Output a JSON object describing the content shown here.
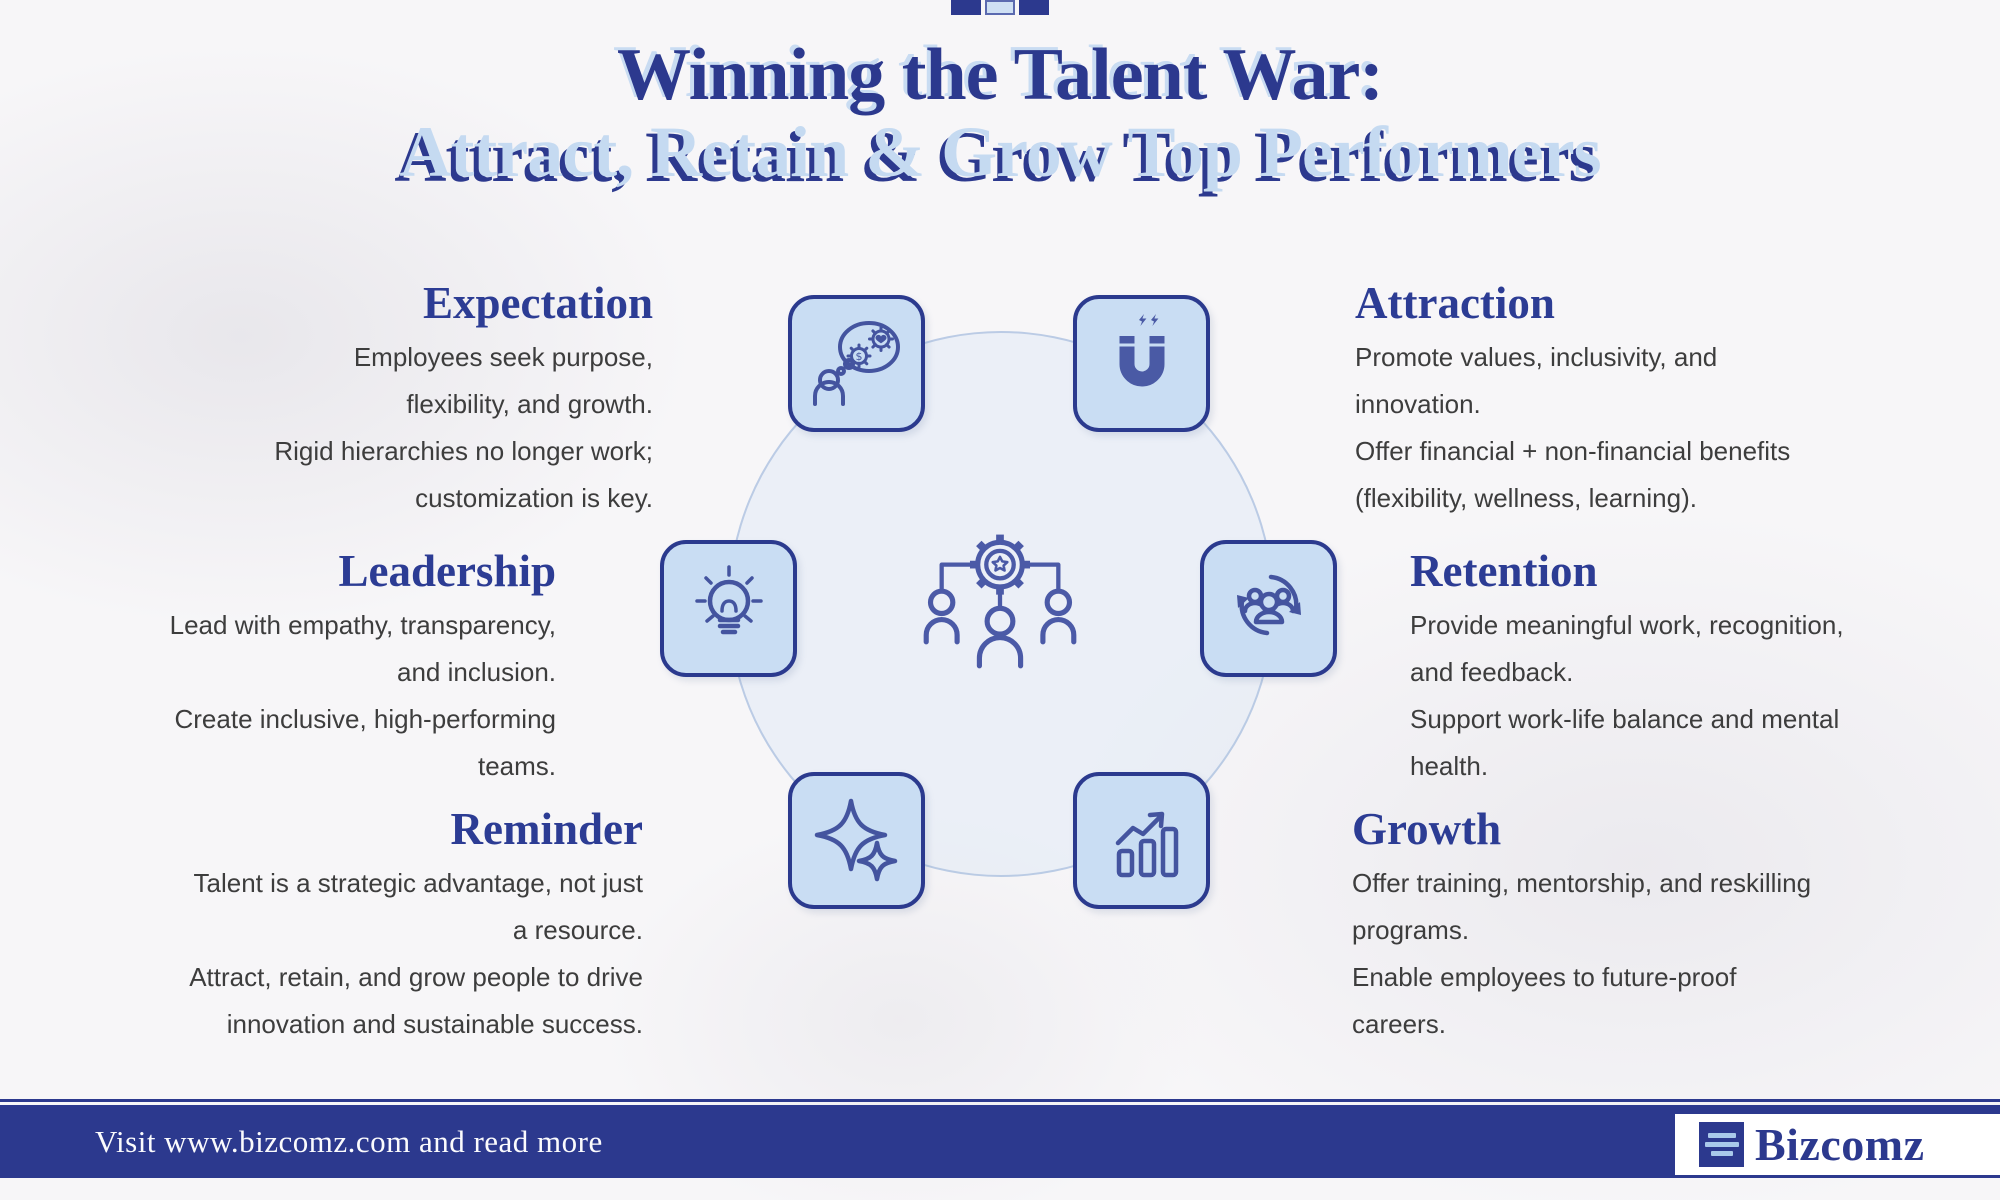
{
  "header": {
    "title": "Winning the Talent War:",
    "subtitle": "Attract, Retain & Grow Top Performers"
  },
  "sections": {
    "expectation": {
      "heading": "Expectation",
      "lines": [
        "Employees seek purpose,",
        "flexibility, and growth.",
        "Rigid hierarchies no longer work;",
        "customization is key."
      ]
    },
    "leadership": {
      "heading": "Leadership",
      "lines": [
        "Lead with empathy, transparency,",
        "and inclusion.",
        "Create inclusive, high-performing",
        "teams."
      ]
    },
    "reminder": {
      "heading": "Reminder",
      "lines": [
        "Talent is a strategic advantage, not just",
        "a resource.",
        "Attract, retain, and grow people to drive",
        "innovation and sustainable success."
      ]
    },
    "attraction": {
      "heading": "Attraction",
      "lines": [
        "Promote values, inclusivity, and",
        "innovation.",
        "Offer financial + non-financial benefits",
        "(flexibility, wellness, learning)."
      ]
    },
    "retention": {
      "heading": "Retention",
      "lines": [
        "Provide meaningful work, recognition,",
        "and feedback.",
        "Support work-life balance and mental",
        "health."
      ]
    },
    "growth": {
      "heading": "Growth",
      "lines": [
        "Offer training, mentorship, and reskilling",
        "programs.",
        "Enable employees to future-proof",
        "careers."
      ]
    }
  },
  "icons": {
    "top": "top-ornament-icon",
    "expectation": "mindset-gears-icon",
    "attraction": "magnet-icon",
    "leadership": "lightbulb-icon",
    "retention": "people-cycle-icon",
    "reminder": "sparkles-icon",
    "growth": "growth-chart-icon",
    "center": "team-gear-icon",
    "brand": "bizcomz-logo-icon"
  },
  "footer": {
    "visit_text": "Visit www.bizcomz.com and read more",
    "brand_name": "Bizcomz"
  },
  "colors": {
    "navy": "#2c398e",
    "light_blue": "#c5daf1",
    "box_fill": "#c9ddf3",
    "icon_stroke": "#44549f",
    "magnet_fill": "#4a5aa5",
    "body_text": "#3d3d3d",
    "background": "#f7f6f8"
  }
}
